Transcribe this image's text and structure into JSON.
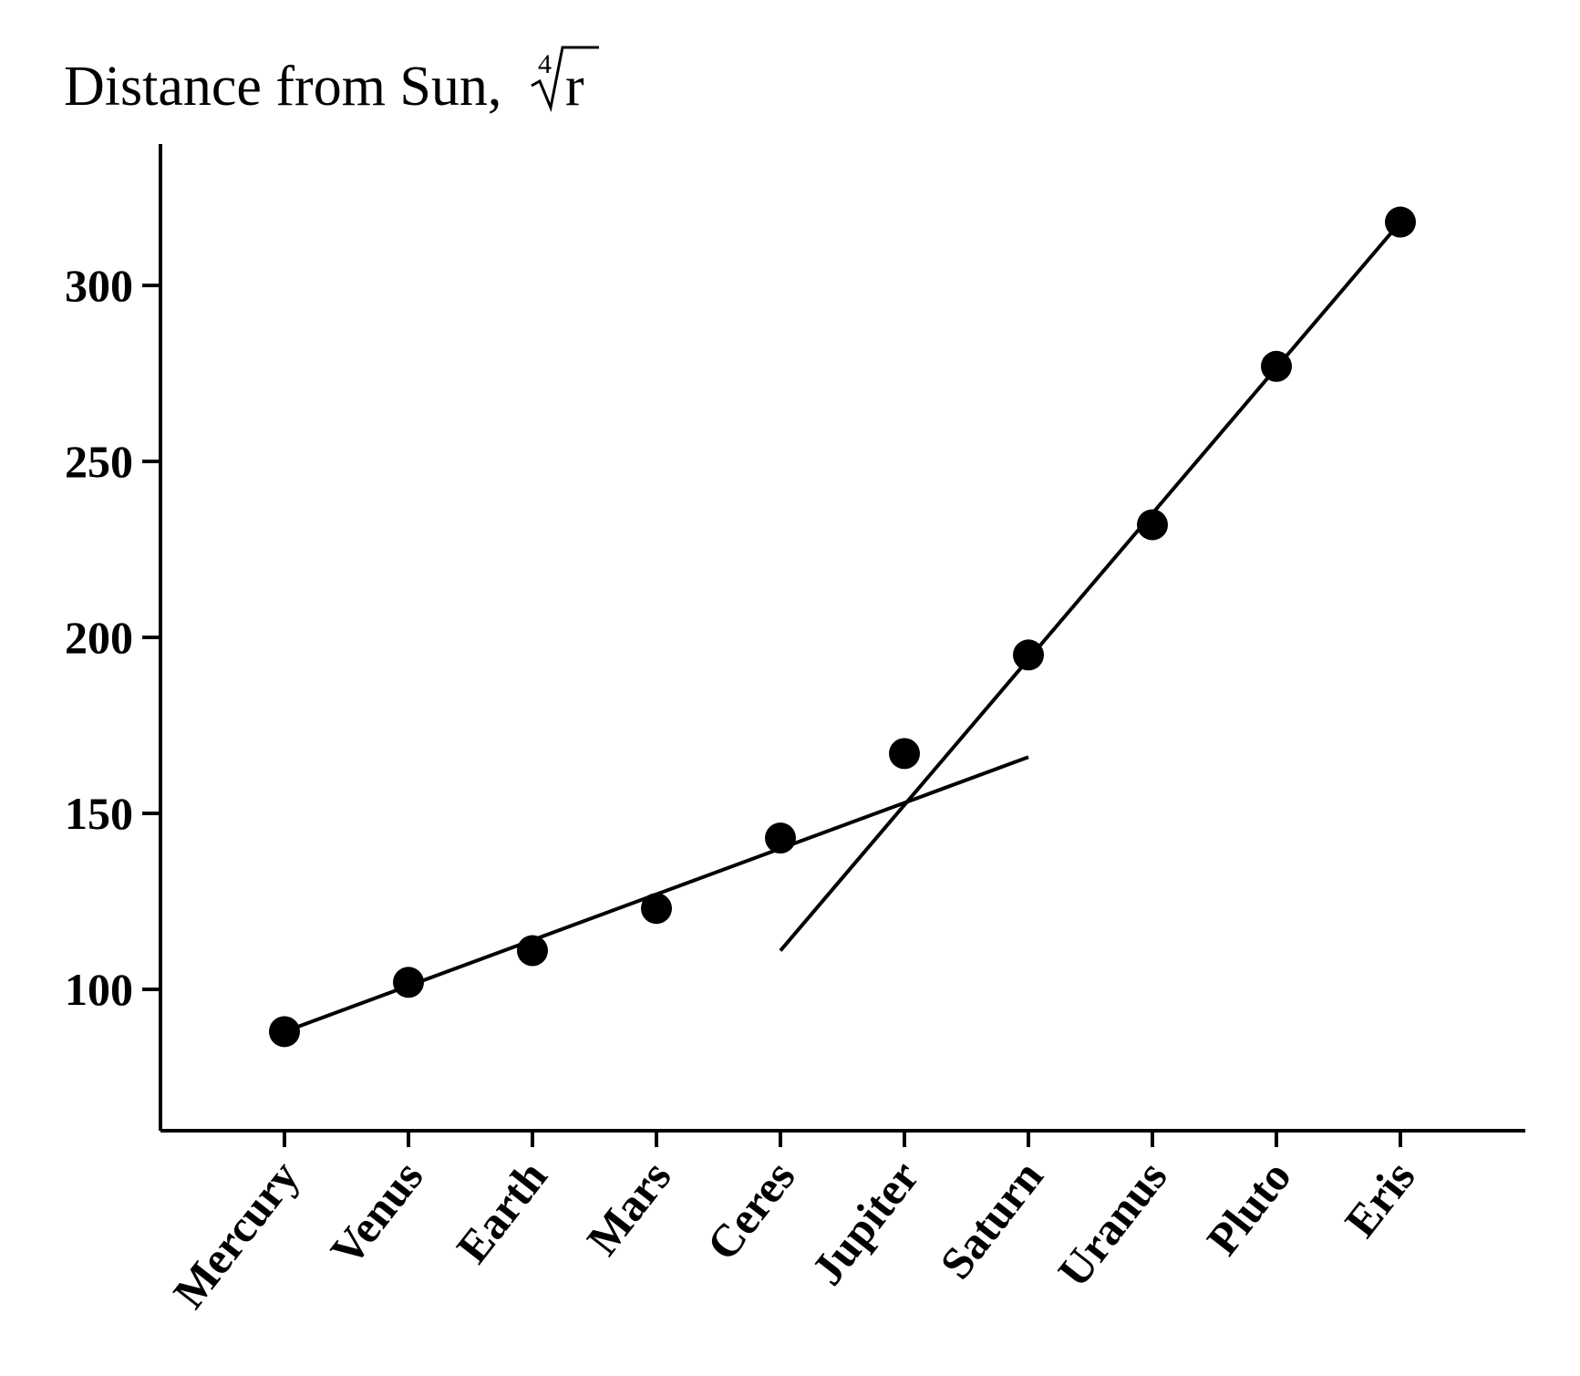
{
  "chart_data": {
    "type": "scatter",
    "ylabel": {
      "prefix": "Distance from Sun, ",
      "root_index": "4",
      "radicand": "r"
    },
    "categories": [
      "Mercury",
      "Venus",
      "Earth",
      "Mars",
      "Ceres",
      "Jupiter",
      "Saturn",
      "Uranus",
      "Pluto",
      "Eris"
    ],
    "series": [
      {
        "values": [
          88,
          102,
          111,
          123,
          143,
          167,
          195,
          232,
          277,
          318
        ]
      }
    ],
    "trend_lines": [
      {
        "from": {
          "category": "Mercury",
          "y": 88
        },
        "to": {
          "category": "Saturn",
          "y": 166
        }
      },
      {
        "from": {
          "category": "Ceres",
          "y": 111
        },
        "to": {
          "category": "Eris",
          "y": 318
        }
      }
    ],
    "yticks": [
      100,
      150,
      200,
      250,
      300
    ],
    "ylim": [
      60,
      340
    ],
    "grid": false,
    "legend": "none"
  }
}
